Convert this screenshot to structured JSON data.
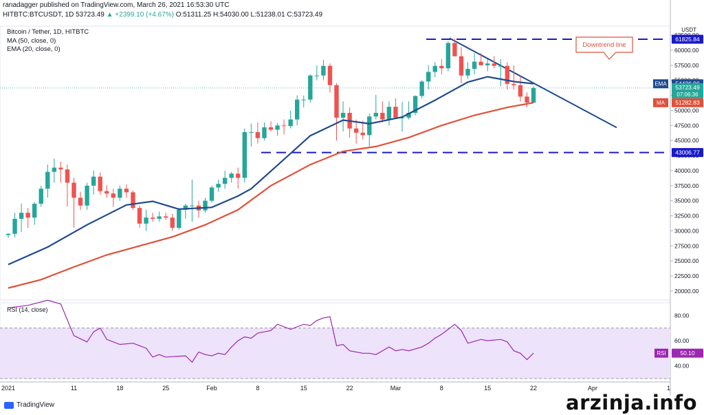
{
  "header": {
    "publisher": "ranadagger published on TradingView.com, March 26, 2021 16:53:30 UTC",
    "symbol": "HITBTC:BTCUSDT, 1D",
    "last": "53723.49",
    "change": "▲ +2399.10 (+4.67%)",
    "ohlc": "O:51311.25  H:54030.00  L:51238.01  C:53723.49"
  },
  "legend": {
    "title": "Bitcoin / Tether, 1D, HITBTC",
    "ma": "MA (50, close, 0)",
    "ema": "EMA (20, close, 0)"
  },
  "annotation": {
    "downtrend": "Downtrend line"
  },
  "rsi_legend": "RSI (14, close)",
  "price_axis": {
    "currency": "USDT",
    "ticks": [
      "62500.00",
      "60000.00",
      "57500.00",
      "55000.00",
      "52500.00",
      "50000.00",
      "47500.00",
      "45000.00",
      "42500.00",
      "40000.00",
      "37500.00",
      "35000.00",
      "32500.00",
      "30000.00",
      "27500.00",
      "25000.00",
      "22500.00",
      "20000.00"
    ],
    "resistance": "61825.84",
    "support": "43006.77",
    "ema_tag": "EMA",
    "ema_value": "54426.96",
    "last_price": "53723.49",
    "countdown": "07:06:36",
    "ma_tag": "MA",
    "ma_value": "51282.83"
  },
  "rsi_axis": {
    "ticks": [
      "80.00",
      "60.00",
      "40.00"
    ],
    "tag": "RSI",
    "value": "50.10"
  },
  "time_axis": [
    "2021",
    "11",
    "18",
    "25",
    "Feb",
    "8",
    "15",
    "22",
    "Mar",
    "8",
    "15",
    "22",
    "Apr",
    "1"
  ],
  "brand": "TradingView",
  "watermark": "arzinja.info",
  "colors": {
    "up": "#26a69a",
    "down": "#ef5350",
    "ema": "#1e4b8f",
    "ma": "#e0503a",
    "rsi": "#9c27b0",
    "levels": "#1a1ac8"
  },
  "chart_data": {
    "type": "candlestick",
    "x_start": "2021-01-01",
    "ylim": [
      18500,
      64000
    ],
    "candles": [
      [
        29300,
        29600,
        28800,
        29500
      ],
      [
        29500,
        33000,
        28900,
        32000
      ],
      [
        32000,
        34500,
        29800,
        33000
      ],
      [
        33000,
        33800,
        30500,
        32200
      ],
      [
        32200,
        34800,
        31000,
        34500
      ],
      [
        34500,
        37500,
        34000,
        37000
      ],
      [
        37000,
        41000,
        35500,
        39800
      ],
      [
        39800,
        42000,
        38000,
        40500
      ],
      [
        40500,
        41500,
        38000,
        40200
      ],
      [
        40200,
        41000,
        34000,
        38000
      ],
      [
        38000,
        38800,
        30500,
        35500
      ],
      [
        35500,
        36500,
        33500,
        34200
      ],
      [
        34200,
        38000,
        33500,
        37500
      ],
      [
        37500,
        40000,
        36000,
        39000
      ],
      [
        39000,
        39700,
        36000,
        36600
      ],
      [
        36600,
        37600,
        35500,
        36200
      ],
      [
        36200,
        37000,
        34000,
        35500
      ],
      [
        35500,
        37500,
        35000,
        37000
      ],
      [
        37000,
        37700,
        35500,
        36400
      ],
      [
        36400,
        36700,
        33500,
        33800
      ],
      [
        33800,
        34200,
        30500,
        31200
      ],
      [
        31200,
        33500,
        30000,
        32200
      ],
      [
        32200,
        33000,
        31500,
        32000
      ],
      [
        32000,
        33200,
        31500,
        32400
      ],
      [
        32400,
        33000,
        31800,
        32200
      ],
      [
        32200,
        32800,
        30000,
        30500
      ],
      [
        30500,
        33800,
        30200,
        33500
      ],
      [
        33500,
        34500,
        32000,
        34200
      ],
      [
        34200,
        38500,
        31500,
        34200
      ],
      [
        34200,
        35000,
        32200,
        33400
      ],
      [
        33400,
        35500,
        33000,
        35000
      ],
      [
        35000,
        37500,
        34700,
        37200
      ],
      [
        37200,
        38500,
        36500,
        37800
      ],
      [
        37800,
        40000,
        37000,
        38800
      ],
      [
        38800,
        39800,
        38000,
        39500
      ],
      [
        39500,
        40500,
        37000,
        38800
      ],
      [
        38800,
        47000,
        38000,
        46400
      ],
      [
        46400,
        47800,
        44000,
        46400
      ],
      [
        46400,
        48000,
        44500,
        45400
      ],
      [
        45400,
        48000,
        45000,
        47200
      ],
      [
        47200,
        48200,
        46500,
        46800
      ],
      [
        46800,
        47900,
        45800,
        47500
      ],
      [
        47500,
        48500,
        46000,
        47400
      ],
      [
        47400,
        50000,
        47000,
        48500
      ],
      [
        48500,
        52500,
        47500,
        51800
      ],
      [
        51800,
        52500,
        50500,
        51800
      ],
      [
        51800,
        56000,
        51300,
        55800
      ],
      [
        55800,
        57500,
        55000,
        55800
      ],
      [
        55800,
        58400,
        55000,
        57400
      ],
      [
        57400,
        57800,
        53000,
        54200
      ],
      [
        54200,
        54500,
        45000,
        48800
      ],
      [
        48800,
        51500,
        46500,
        49600
      ],
      [
        49600,
        50500,
        45500,
        47000
      ],
      [
        47000,
        48500,
        44500,
        46300
      ],
      [
        46300,
        48300,
        45200,
        45900
      ],
      [
        45900,
        49500,
        44000,
        49000
      ],
      [
        49000,
        52600,
        48500,
        49600
      ],
      [
        49600,
        51500,
        48000,
        48500
      ],
      [
        48500,
        51500,
        47500,
        50600
      ],
      [
        50600,
        52000,
        49000,
        48800
      ],
      [
        48800,
        51400,
        46500,
        48800
      ],
      [
        48800,
        51500,
        48500,
        49600
      ],
      [
        49600,
        52500,
        49200,
        52400
      ],
      [
        52400,
        55000,
        52000,
        54800
      ],
      [
        54800,
        57500,
        53500,
        56400
      ],
      [
        56400,
        58000,
        55500,
        57400
      ],
      [
        57400,
        58500,
        56000,
        57000
      ],
      [
        57000,
        61500,
        56500,
        61200
      ],
      [
        61200,
        61900,
        59000,
        59000
      ],
      [
        59000,
        60500,
        54500,
        55800
      ],
      [
        55800,
        58000,
        55300,
        56900
      ],
      [
        56900,
        59500,
        56000,
        58100
      ],
      [
        58100,
        59500,
        57500,
        57500
      ],
      [
        57500,
        58500,
        56500,
        57800
      ],
      [
        57800,
        59000,
        57000,
        57400
      ],
      [
        57400,
        58500,
        54000,
        57400
      ],
      [
        57400,
        58000,
        53500,
        54400
      ],
      [
        54400,
        57500,
        53500,
        54200
      ],
      [
        54200,
        55800,
        51500,
        52300
      ],
      [
        52300,
        53000,
        50500,
        51300
      ],
      [
        51300,
        54030,
        51238,
        53723
      ]
    ],
    "ema20": [
      [
        0,
        24400
      ],
      [
        6,
        27300
      ],
      [
        12,
        31000
      ],
      [
        18,
        34300
      ],
      [
        22,
        34900
      ],
      [
        26,
        33600
      ],
      [
        31,
        33900
      ],
      [
        35,
        35800
      ],
      [
        37,
        37000
      ],
      [
        41,
        40900
      ],
      [
        46,
        45800
      ],
      [
        51,
        48400
      ],
      [
        55,
        47800
      ],
      [
        60,
        48900
      ],
      [
        65,
        51700
      ],
      [
        70,
        54700
      ],
      [
        73,
        55600
      ],
      [
        77,
        54800
      ],
      [
        80,
        54427
      ]
    ],
    "ma50": [
      [
        0,
        20500
      ],
      [
        5,
        21900
      ],
      [
        10,
        24000
      ],
      [
        15,
        26000
      ],
      [
        20,
        27500
      ],
      [
        25,
        29000
      ],
      [
        30,
        31000
      ],
      [
        35,
        33500
      ],
      [
        40,
        37500
      ],
      [
        46,
        41000
      ],
      [
        51,
        43200
      ],
      [
        56,
        44000
      ],
      [
        61,
        45500
      ],
      [
        66,
        47500
      ],
      [
        71,
        49200
      ],
      [
        76,
        50500
      ],
      [
        80,
        51283
      ]
    ],
    "rsi": [
      [
        0,
        86
      ],
      [
        3,
        88
      ],
      [
        6,
        92
      ],
      [
        8,
        89
      ],
      [
        10,
        64
      ],
      [
        12,
        59
      ],
      [
        13,
        67
      ],
      [
        14,
        70
      ],
      [
        15,
        61
      ],
      [
        17,
        57
      ],
      [
        19,
        58
      ],
      [
        20,
        56
      ],
      [
        21,
        54
      ],
      [
        22,
        47
      ],
      [
        23,
        49
      ],
      [
        24,
        47
      ],
      [
        27,
        48
      ],
      [
        28,
        43
      ],
      [
        29,
        51
      ],
      [
        30,
        49
      ],
      [
        31,
        48
      ],
      [
        32,
        50
      ],
      [
        33,
        49
      ],
      [
        34,
        55
      ],
      [
        35,
        60
      ],
      [
        36,
        63
      ],
      [
        37,
        62
      ],
      [
        38,
        66
      ],
      [
        40,
        68
      ],
      [
        41,
        73
      ],
      [
        43,
        69
      ],
      [
        45,
        73
      ],
      [
        46,
        72
      ],
      [
        47,
        76
      ],
      [
        48,
        78
      ],
      [
        49,
        79
      ],
      [
        50,
        56
      ],
      [
        51,
        57
      ],
      [
        52,
        52
      ],
      [
        54,
        50
      ],
      [
        55,
        50
      ],
      [
        56,
        49
      ],
      [
        58,
        55
      ],
      [
        59,
        52
      ],
      [
        60,
        53
      ],
      [
        61,
        52
      ],
      [
        63,
        55
      ],
      [
        64,
        58
      ],
      [
        65,
        62
      ],
      [
        66,
        65
      ],
      [
        67,
        69
      ],
      [
        68,
        73
      ],
      [
        69,
        68
      ],
      [
        70,
        58
      ],
      [
        72,
        61
      ],
      [
        73,
        60
      ],
      [
        75,
        61
      ],
      [
        76,
        59
      ],
      [
        77,
        52
      ],
      [
        78,
        50
      ],
      [
        79,
        45
      ],
      [
        80,
        50.1
      ]
    ],
    "resistance": 61825.84,
    "support": 43006.77,
    "downtrend": [
      [
        67,
        62000
      ],
      [
        79,
        55000
      ]
    ],
    "rsi_range": [
      30,
      90
    ],
    "rsi_bands": [
      70,
      30
    ]
  }
}
